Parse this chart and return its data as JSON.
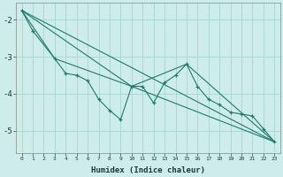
{
  "title": "",
  "xlabel": "Humidex (Indice chaleur)",
  "ylabel": "",
  "bg_color": "#ceecea",
  "grid_color": "#aed8d4",
  "line_color": "#1e7a6d",
  "xlim": [
    -0.5,
    23.5
  ],
  "ylim": [
    -5.6,
    -1.55
  ],
  "yticks": [
    -5,
    -4,
    -3,
    -2
  ],
  "xticks": [
    0,
    1,
    2,
    3,
    4,
    5,
    6,
    7,
    8,
    9,
    10,
    11,
    12,
    13,
    14,
    15,
    16,
    17,
    18,
    19,
    20,
    21,
    22,
    23
  ],
  "series1": [
    [
      0,
      -1.75
    ],
    [
      1,
      -2.3
    ],
    [
      3,
      -3.05
    ],
    [
      4,
      -3.45
    ],
    [
      5,
      -3.5
    ],
    [
      6,
      -3.65
    ],
    [
      7,
      -4.15
    ],
    [
      8,
      -4.45
    ],
    [
      9,
      -4.7
    ],
    [
      10,
      -3.8
    ],
    [
      11,
      -3.8
    ],
    [
      12,
      -4.25
    ],
    [
      13,
      -3.7
    ],
    [
      14,
      -3.5
    ],
    [
      15,
      -3.2
    ],
    [
      16,
      -3.8
    ],
    [
      17,
      -4.15
    ],
    [
      18,
      -4.3
    ],
    [
      19,
      -4.5
    ],
    [
      20,
      -4.55
    ],
    [
      21,
      -4.6
    ],
    [
      22,
      -4.95
    ],
    [
      23,
      -5.3
    ]
  ],
  "series2": [
    [
      0,
      -1.75
    ],
    [
      3,
      -3.05
    ],
    [
      10,
      -3.8
    ],
    [
      23,
      -5.3
    ]
  ],
  "series3": [
    [
      0,
      -1.75
    ],
    [
      10,
      -3.8
    ],
    [
      15,
      -3.2
    ],
    [
      23,
      -5.3
    ]
  ],
  "series4": [
    [
      0,
      -1.75
    ],
    [
      23,
      -5.3
    ]
  ]
}
